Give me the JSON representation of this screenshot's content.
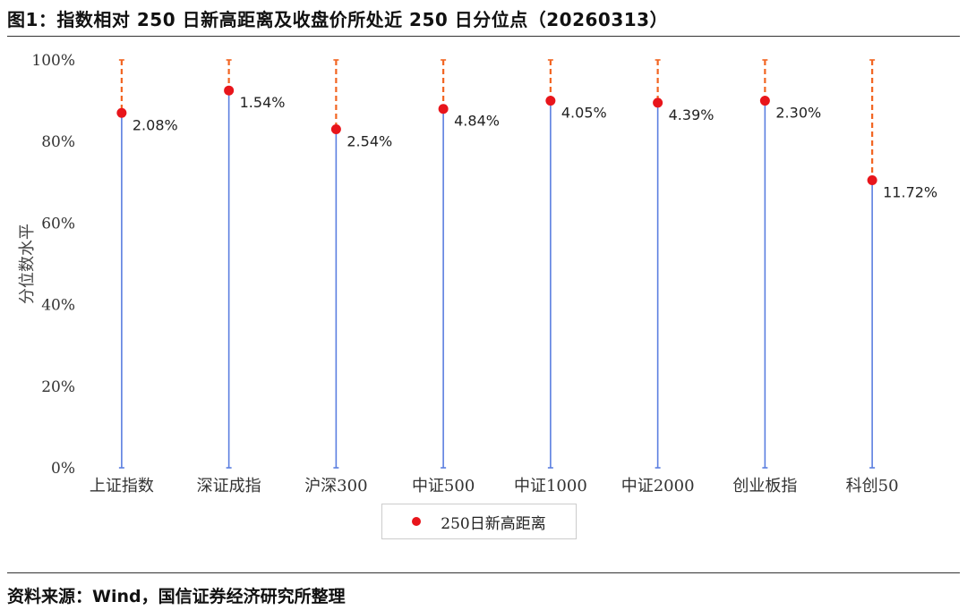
{
  "title": "图1：指数相对 250 日新高距离及收盘价所处近 250 日分位点（20260313）",
  "source": "资料来源：Wind，国信证券经济研究所整理",
  "colors": {
    "stem": "#5b7fe0",
    "gap": "#f26522",
    "marker": "#e8151b"
  },
  "chart_data": {
    "type": "scatter",
    "title": "",
    "xlabel": "",
    "ylabel": "分位数水平",
    "ylim": [
      0,
      100
    ],
    "yticks": [
      0,
      20,
      40,
      60,
      80,
      100
    ],
    "ytick_labels": [
      "0%",
      "20%",
      "40%",
      "60%",
      "80%",
      "100%"
    ],
    "categories": [
      "上证指数",
      "深证成指",
      "沪深300",
      "中证500",
      "中证1000",
      "中证2000",
      "创业板指",
      "科创50"
    ],
    "series": [
      {
        "name": "250日新高距离",
        "percentile": [
          87,
          92.5,
          83,
          88,
          90,
          89.5,
          90,
          70.5
        ],
        "labels": [
          "2.08%",
          "1.54%",
          "2.54%",
          "4.84%",
          "4.05%",
          "4.39%",
          "2.30%",
          "11.72%"
        ]
      }
    ],
    "legend": "bottom-center",
    "grid": false
  }
}
